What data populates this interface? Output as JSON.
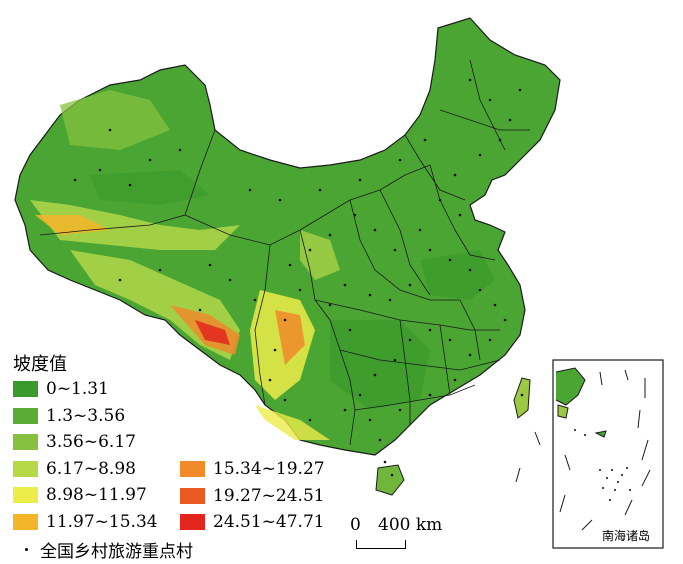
{
  "legend": {
    "title": "坡度值",
    "classes": [
      {
        "label": "0~1.31",
        "color": "#3a9a2c"
      },
      {
        "label": "1.3~3.56",
        "color": "#5aac34"
      },
      {
        "label": "3.56~6.17",
        "color": "#86c13f"
      },
      {
        "label": "6.17~8.98",
        "color": "#b6d94a"
      },
      {
        "label": "8.98~11.97",
        "color": "#ecec4a"
      },
      {
        "label": "11.97~15.34",
        "color": "#f4b52c"
      },
      {
        "label": "15.34~19.27",
        "color": "#f08a2a"
      },
      {
        "label": "19.27~24.51",
        "color": "#e85a22"
      },
      {
        "label": "24.51~47.71",
        "color": "#e2261e"
      }
    ],
    "point_symbol_label": "全国乡村旅游重点村"
  },
  "scale_bar": {
    "zero": "0",
    "text": "400 km"
  },
  "inset": {
    "label": "南海诸岛"
  },
  "colors": {
    "land_base": "#4aa533",
    "boundary": "#1a1a1a",
    "village": "#111111"
  }
}
